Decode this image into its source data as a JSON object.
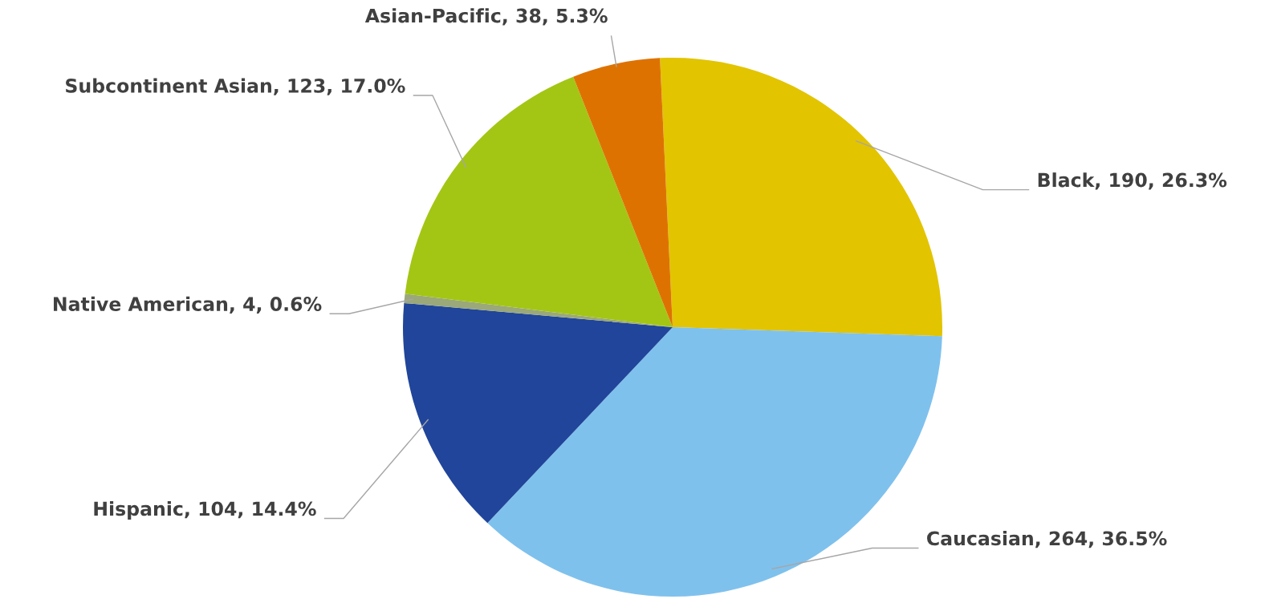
{
  "chart_data": {
    "type": "pie",
    "categories": [
      "Black",
      "Caucasian",
      "Hispanic",
      "Native American",
      "Subcontinent Asian",
      "Asian-Pacific"
    ],
    "values": [
      190,
      264,
      104,
      4,
      123,
      38
    ],
    "colors": [
      "#e2c400",
      "#7fc1ed",
      "#20459a",
      "#9aa87a",
      "#a3c614",
      "#de7200"
    ],
    "value_labels": [
      "190, 26.3%",
      "264, 36.5%",
      "104, 14.4%",
      "4, 0.6%",
      "123, 17.0%",
      "38, 5.3%"
    ],
    "legend": false
  }
}
